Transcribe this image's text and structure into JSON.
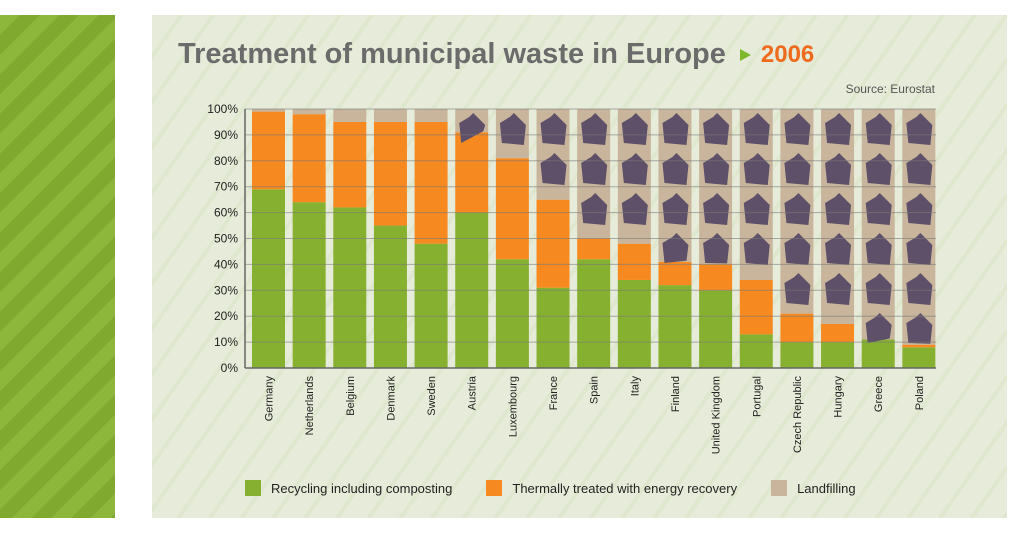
{
  "title": "Treatment of municipal waste in Europe",
  "year": "2006",
  "source": "Source: Eurostat",
  "colors": {
    "recycling": "#86b02f",
    "thermal": "#f6891f",
    "landfill": "#c8b59c",
    "bag": "#5e5068"
  },
  "chart_data": {
    "type": "bar",
    "stacked": true,
    "title": "Treatment of municipal waste in Europe 2006",
    "xlabel": "",
    "ylabel": "",
    "ylim": [
      0,
      100
    ],
    "yticks": [
      "0%",
      "10%",
      "20%",
      "30%",
      "40%",
      "50%",
      "60%",
      "70%",
      "80%",
      "90%",
      "100%"
    ],
    "categories": [
      "Germany",
      "Netherlands",
      "Belgium",
      "Denmark",
      "Sweden",
      "Austria",
      "Luxembourg",
      "France",
      "Spain",
      "Italy",
      "Finland",
      "United Kingdom",
      "Portugal",
      "Czech Republic",
      "Hungary",
      "Greece",
      "Poland"
    ],
    "series": [
      {
        "name": "Recycling including composting",
        "values": [
          69,
          64,
          62,
          55,
          48,
          60,
          42,
          31,
          42,
          34,
          32,
          30,
          13,
          10,
          10,
          11,
          8
        ]
      },
      {
        "name": "Thermally treated with energy recovery",
        "values": [
          30,
          34,
          33,
          40,
          47,
          31,
          39,
          34,
          8,
          14,
          9,
          10,
          21,
          11,
          7,
          0,
          1
        ]
      },
      {
        "name": "Landfilling",
        "values": [
          1,
          2,
          5,
          5,
          5,
          9,
          19,
          35,
          50,
          52,
          59,
          60,
          66,
          79,
          83,
          89,
          91
        ]
      }
    ],
    "legend": "bottom"
  }
}
